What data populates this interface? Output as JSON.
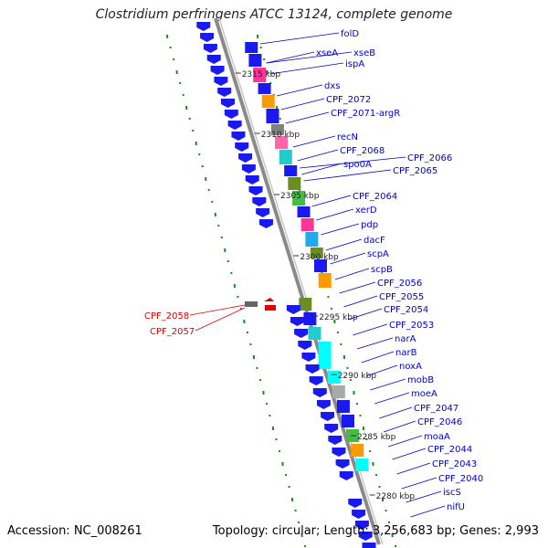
{
  "title": "Clostridium perfringens ATCC 13124, complete genome",
  "footer": {
    "accession": "Accession: NC_008261",
    "summary": "Topology: circular; Length: 3,256,683 bp; Genes: 2,993"
  },
  "colors": {
    "gene_blue": "#1a1aee",
    "label_blue": "#0000cc",
    "highlight_red": "#e00000",
    "ruler_green": "#1a8a1a",
    "backbone_gray": "#888888"
  },
  "ticks": [
    {
      "label": "2315 kbp"
    },
    {
      "label": "2310 kbp"
    },
    {
      "label": "2305 kbp"
    },
    {
      "label": "2300 kbp"
    },
    {
      "label": "2295 kbp"
    },
    {
      "label": "2290 kbp"
    },
    {
      "label": "2285 kbp"
    },
    {
      "label": "2280 kbp"
    }
  ],
  "genes": [
    {
      "label": "folD"
    },
    {
      "label": "xseA"
    },
    {
      "label": "xseB"
    },
    {
      "label": "ispA"
    },
    {
      "label": "dxs"
    },
    {
      "label": "CPF_2072"
    },
    {
      "label": "CPF_2071-argR"
    },
    {
      "label": "recN"
    },
    {
      "label": "CPF_2068"
    },
    {
      "label": "spo0A"
    },
    {
      "label": "CPF_2066"
    },
    {
      "label": "CPF_2065"
    },
    {
      "label": "CPF_2064"
    },
    {
      "label": "xerD"
    },
    {
      "label": "pdp"
    },
    {
      "label": "dacF"
    },
    {
      "label": "scpA"
    },
    {
      "label": "scpB"
    },
    {
      "label": "CPF_2056"
    },
    {
      "label": "CPF_2055"
    },
    {
      "label": "CPF_2054"
    },
    {
      "label": "CPF_2053"
    },
    {
      "label": "narA"
    },
    {
      "label": "narB"
    },
    {
      "label": "noxA"
    },
    {
      "label": "mobB"
    },
    {
      "label": "moeA"
    },
    {
      "label": "CPF_2047"
    },
    {
      "label": "CPF_2046"
    },
    {
      "label": "moaA"
    },
    {
      "label": "CPF_2044"
    },
    {
      "label": "CPF_2043"
    },
    {
      "label": "CPF_2040"
    },
    {
      "label": "iscS"
    },
    {
      "label": "nifU"
    }
  ],
  "left_genes": [
    {
      "label": "CPF_2058"
    },
    {
      "label": "CPF_2057"
    }
  ]
}
